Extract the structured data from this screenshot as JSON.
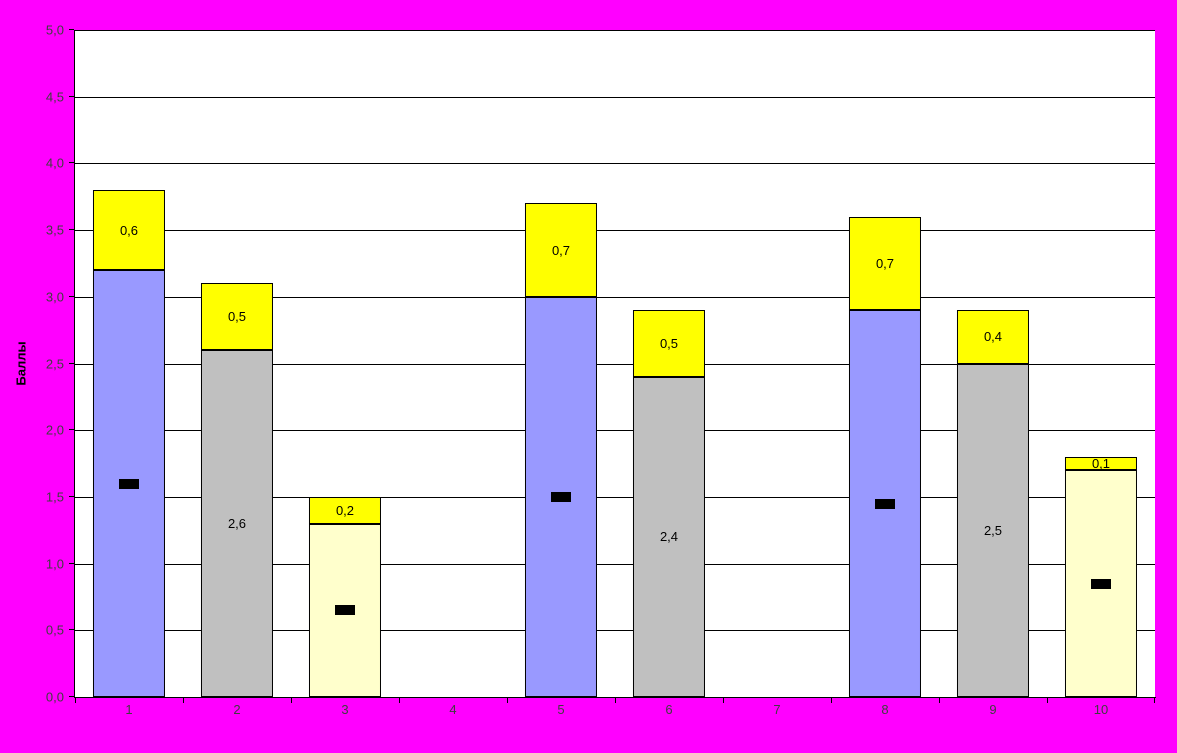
{
  "chart_data": {
    "type": "stacked-bar",
    "title": "",
    "ylabel": "Баллы",
    "xlabel": "",
    "ylim": [
      0,
      5
    ],
    "grid": true,
    "legend": null,
    "yticks": [
      {
        "value": 0.0,
        "label": "0,0"
      },
      {
        "value": 0.5,
        "label": "0,5"
      },
      {
        "value": 1.0,
        "label": "1,0"
      },
      {
        "value": 1.5,
        "label": "1,5"
      },
      {
        "value": 2.0,
        "label": "2,0"
      },
      {
        "value": 2.5,
        "label": "2,5"
      },
      {
        "value": 3.0,
        "label": "3,0"
      },
      {
        "value": 3.5,
        "label": "3,5"
      },
      {
        "value": 4.0,
        "label": "4,0"
      },
      {
        "value": 4.5,
        "label": "4,5"
      },
      {
        "value": 5.0,
        "label": "5,0"
      }
    ],
    "categories": [
      "1",
      "2",
      "3",
      "4",
      "5",
      "6",
      "7",
      "8",
      "9",
      "10"
    ],
    "bars": [
      {
        "category": "1",
        "base": {
          "value": 3.2,
          "color": "#9999FF",
          "label": ""
        },
        "top": {
          "value": 0.6,
          "color": "#FFFF00",
          "label": "0,6"
        },
        "marker": 1.6
      },
      {
        "category": "2",
        "base": {
          "value": 2.6,
          "color": "#C0C0C0",
          "label": "2,6"
        },
        "top": {
          "value": 0.5,
          "color": "#FFFF00",
          "label": "0,5"
        },
        "marker": null
      },
      {
        "category": "3",
        "base": {
          "value": 1.3,
          "color": "#FFFFCC",
          "label": ""
        },
        "top": {
          "value": 0.2,
          "color": "#FFFF00",
          "label": "0,2"
        },
        "marker": 0.65
      },
      {
        "category": "4",
        "base": null,
        "top": null,
        "marker": null
      },
      {
        "category": "5",
        "base": {
          "value": 3.0,
          "color": "#9999FF",
          "label": ""
        },
        "top": {
          "value": 0.7,
          "color": "#FFFF00",
          "label": "0,7"
        },
        "marker": 1.5
      },
      {
        "category": "6",
        "base": {
          "value": 2.4,
          "color": "#C0C0C0",
          "label": "2,4"
        },
        "top": {
          "value": 0.5,
          "color": "#FFFF00",
          "label": "0,5"
        },
        "marker": null
      },
      {
        "category": "7",
        "base": null,
        "top": null,
        "marker": null
      },
      {
        "category": "8",
        "base": {
          "value": 2.9,
          "color": "#9999FF",
          "label": ""
        },
        "top": {
          "value": 0.7,
          "color": "#FFFF00",
          "label": "0,7"
        },
        "marker": 1.45
      },
      {
        "category": "9",
        "base": {
          "value": 2.5,
          "color": "#C0C0C0",
          "label": "2,5"
        },
        "top": {
          "value": 0.4,
          "color": "#FFFF00",
          "label": "0,4"
        },
        "marker": null
      },
      {
        "category": "10",
        "base": {
          "value": 1.7,
          "color": "#FFFFCC",
          "label": ""
        },
        "top": {
          "value": 0.1,
          "color": "#FFFF00",
          "label": "0,1"
        },
        "marker": 0.85
      }
    ],
    "colors": {
      "background": "#FF00FF",
      "plot_background": "#FFFFFF",
      "gridline": "#000000",
      "blue_bar": "#9999FF",
      "gray_bar": "#C0C0C0",
      "cream_bar": "#FFFFCC",
      "yellow_segment": "#FFFF00",
      "marker": "#000000"
    }
  }
}
